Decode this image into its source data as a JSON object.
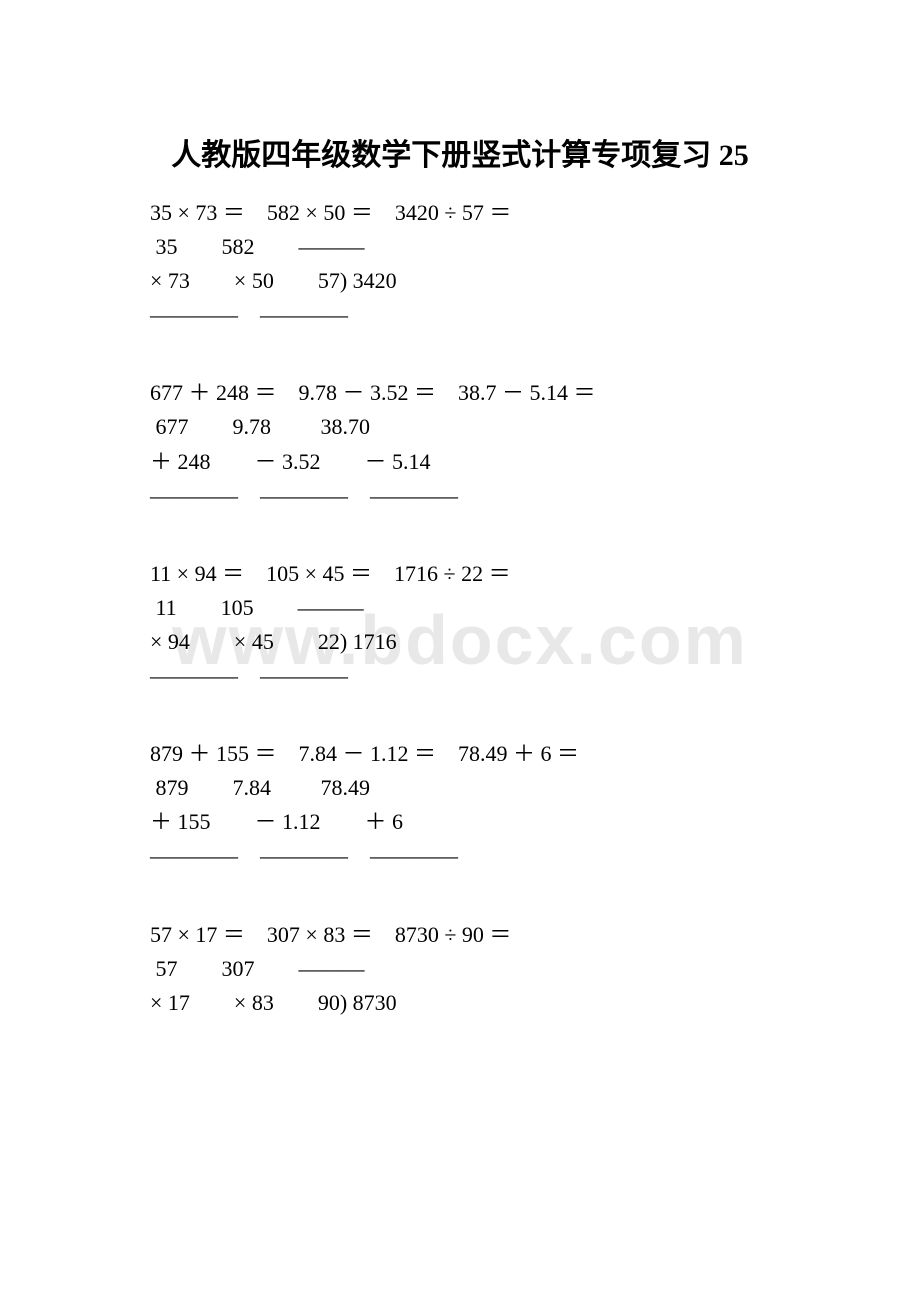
{
  "title": "人教版四年级数学下册竖式计算专项复习 25",
  "watermark": "www.bdocx.com",
  "colors": {
    "background": "#ffffff",
    "text": "#000000",
    "watermark": "#e8e8e8"
  },
  "typography": {
    "title_fontsize": 30,
    "body_fontsize": 22,
    "watermark_fontsize": 70,
    "body_font": "Times New Roman / SimSun",
    "title_font": "SimSun"
  },
  "groups": [
    {
      "lines": [
        "35 × 73 ＝　582 × 50 ＝　3420 ÷ 57 ＝",
        " 35　　582　　———",
        "× 73　　× 50　　57) 3420",
        "————　————"
      ]
    },
    {
      "lines": [
        "677 ＋ 248 ＝　9.78 － 3.52 ＝　38.7 － 5.14 ＝",
        " 677　　9.78　　 38.70",
        "＋ 248　　－ 3.52　　－ 5.14",
        "————　————　————"
      ]
    },
    {
      "lines": [
        "11 × 94 ＝　105 × 45 ＝　1716 ÷ 22 ＝",
        " 11　　105　　———",
        "× 94　　× 45　　22) 1716",
        "————　————"
      ]
    },
    {
      "lines": [
        "879 ＋ 155 ＝　7.84 － 1.12 ＝　78.49 ＋ 6 ＝",
        " 879　　7.84　　 78.49",
        "＋ 155　　－ 1.12　　＋ 6",
        "————　————　————"
      ]
    },
    {
      "lines": [
        "57 × 17 ＝　307 × 83 ＝　8730 ÷ 90 ＝",
        " 57　　307　　———",
        "× 17　　× 83　　90) 8730"
      ]
    }
  ]
}
